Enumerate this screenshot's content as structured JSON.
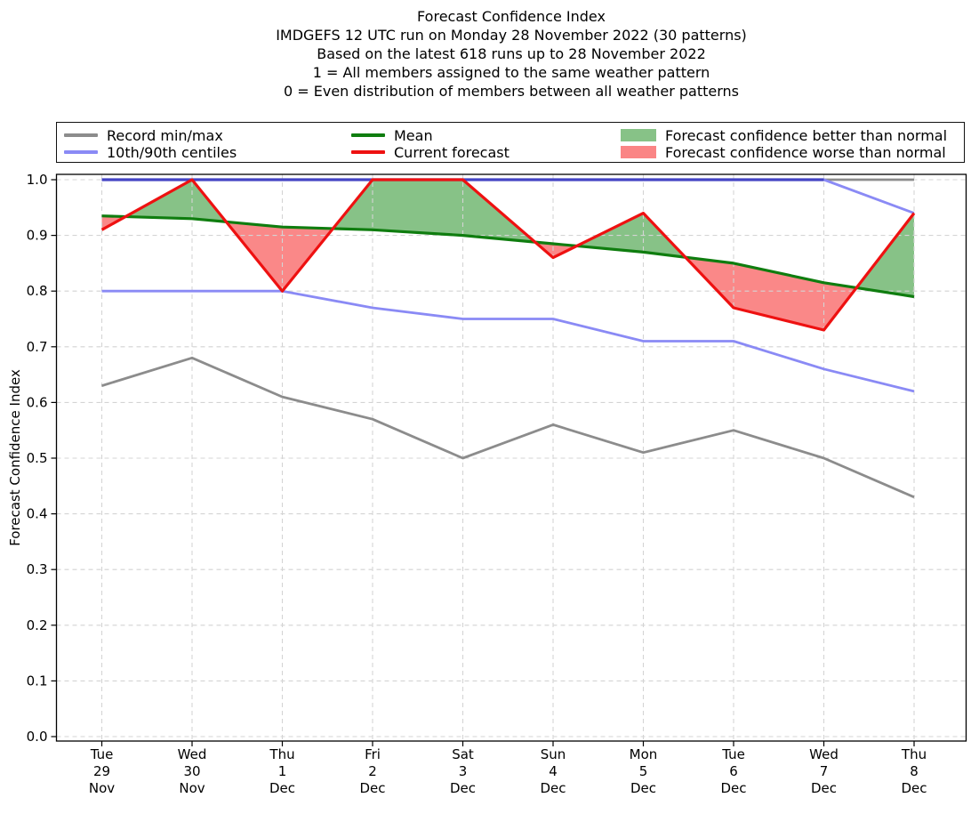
{
  "title_lines": [
    "Forecast Confidence Index",
    "IMDGEFS 12 UTC run on Monday 28 November 2022 (30 patterns)",
    "Based on the latest 618 runs up to 28 November 2022",
    "1 = All members assigned to the same weather pattern",
    "0 = Even distribution of members between all weather patterns"
  ],
  "legend": {
    "items": [
      {
        "label": "Record min/max",
        "swatch": "line",
        "color": "#8c8c8c"
      },
      {
        "label": "10th/90th centiles",
        "swatch": "line",
        "color": "#8a8af5"
      },
      {
        "label": "Mean",
        "swatch": "line",
        "color": "#0f7d0f"
      },
      {
        "label": "Current forecast",
        "swatch": "line",
        "color": "#ee1111"
      },
      {
        "label": "Forecast confidence better than normal",
        "swatch": "patch",
        "color": "#87c287"
      },
      {
        "label": "Forecast confidence worse than normal",
        "swatch": "patch",
        "color": "#fa8585"
      }
    ]
  },
  "chart_data": {
    "type": "line",
    "title": "Forecast Confidence Index",
    "ylabel": "Forecast Confidence Index",
    "xlabel": "",
    "ylim": [
      0.0,
      1.0
    ],
    "grid": true,
    "legend_position": "top",
    "y_tick_labels": [
      "0.0",
      "0.1",
      "0.2",
      "0.3",
      "0.4",
      "0.5",
      "0.6",
      "0.7",
      "0.8",
      "0.9",
      "1.0"
    ],
    "x_tick_labels": [
      [
        "Tue",
        "29",
        "Nov"
      ],
      [
        "Wed",
        "30",
        "Nov"
      ],
      [
        "Thu",
        "1",
        "Dec"
      ],
      [
        "Fri",
        "2",
        "Dec"
      ],
      [
        "Sat",
        "3",
        "Dec"
      ],
      [
        "Sun",
        "4",
        "Dec"
      ],
      [
        "Mon",
        "5",
        "Dec"
      ],
      [
        "Tue",
        "6",
        "Dec"
      ],
      [
        "Wed",
        "7",
        "Dec"
      ],
      [
        "Thu",
        "8",
        "Dec"
      ]
    ],
    "series": [
      {
        "name": "Record max",
        "color": "#8c8c8c",
        "width": 2.8,
        "values": [
          1.0,
          1.0,
          1.0,
          1.0,
          1.0,
          1.0,
          1.0,
          1.0,
          1.0,
          1.0
        ]
      },
      {
        "name": "Record min",
        "color": "#8c8c8c",
        "width": 2.8,
        "values": [
          0.63,
          0.68,
          0.61,
          0.57,
          0.5,
          0.56,
          0.51,
          0.55,
          0.5,
          0.43
        ]
      },
      {
        "name": "90th centile",
        "color": "#8a8af5",
        "width": 2.8,
        "overlap_color": "#4444c4",
        "values": [
          1.0,
          1.0,
          1.0,
          1.0,
          1.0,
          1.0,
          1.0,
          1.0,
          1.0,
          0.94
        ]
      },
      {
        "name": "10th centile",
        "color": "#8a8af5",
        "width": 2.8,
        "values": [
          0.8,
          0.8,
          0.8,
          0.77,
          0.75,
          0.75,
          0.71,
          0.71,
          0.66,
          0.62
        ]
      },
      {
        "name": "Mean",
        "color": "#0f7d0f",
        "width": 3.2,
        "values": [
          0.935,
          0.93,
          0.915,
          0.91,
          0.9,
          0.885,
          0.87,
          0.85,
          0.815,
          0.79
        ]
      },
      {
        "name": "Current forecast",
        "color": "#ee1111",
        "width": 3.2,
        "values": [
          0.91,
          1.0,
          0.8,
          1.0,
          1.0,
          0.86,
          0.94,
          0.77,
          0.73,
          0.94
        ]
      }
    ],
    "fills": {
      "between": [
        "Current forecast",
        "Mean"
      ],
      "better_color": "#87c287",
      "worse_color": "#fa8888",
      "better_label": "Forecast confidence better than normal",
      "worse_label": "Forecast confidence worse than normal"
    }
  }
}
